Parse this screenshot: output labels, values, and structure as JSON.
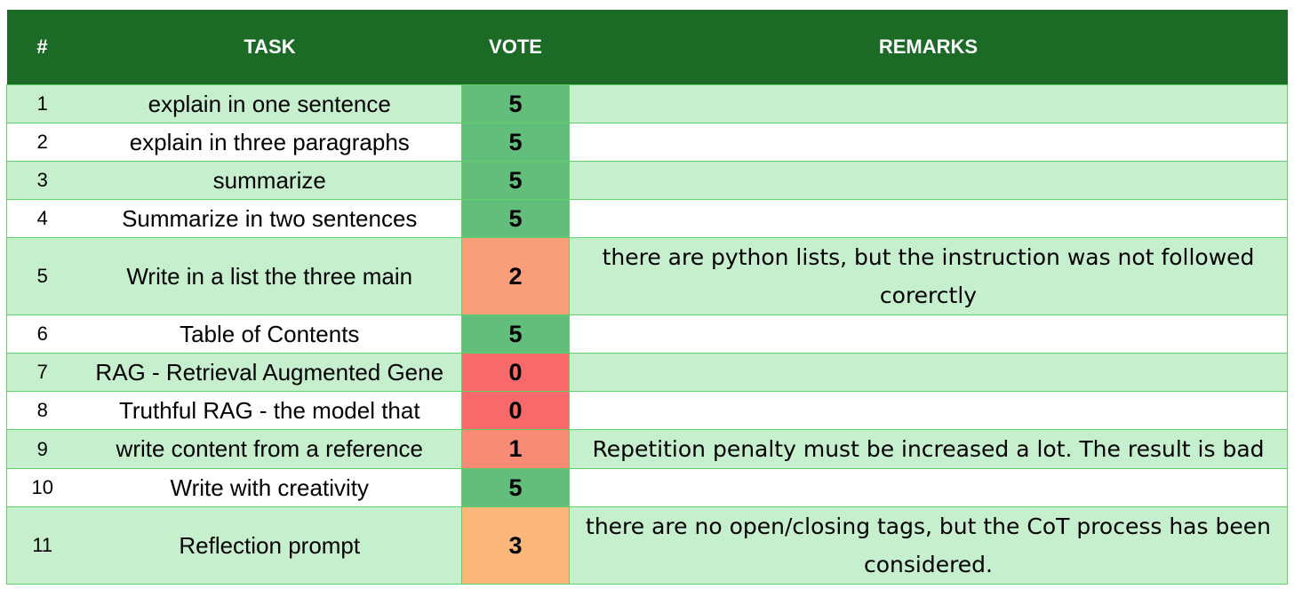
{
  "table": {
    "headers": {
      "num": "#",
      "task": "TASK",
      "vote": "VOTE",
      "remarks": "REMARKS"
    },
    "colors": {
      "header_bg": "#1b6b26",
      "band_green": "#c6efce",
      "band_white": "#ffffff",
      "grid": "#5fcf6a",
      "vote_5": "#63be7b",
      "vote_3": "#fbb77a",
      "vote_2": "#f89f79",
      "vote_1": "#f88b76",
      "vote_0": "#f8696b"
    },
    "rows": [
      {
        "num": "1",
        "task": "explain in one sentence",
        "vote": "5",
        "remarks": "",
        "vote_color": "#63be7b",
        "band": "#c6efce",
        "tall": false
      },
      {
        "num": "2",
        "task": "explain in three paragraphs",
        "vote": "5",
        "remarks": "",
        "vote_color": "#63be7b",
        "band": "#ffffff",
        "tall": false
      },
      {
        "num": "3",
        "task": "summarize",
        "vote": "5",
        "remarks": "",
        "vote_color": "#63be7b",
        "band": "#c6efce",
        "tall": false
      },
      {
        "num": "4",
        "task": "Summarize in two sentences",
        "vote": "5",
        "remarks": "",
        "vote_color": "#63be7b",
        "band": "#ffffff",
        "tall": false
      },
      {
        "num": "5",
        "task": "Write in a list the three main",
        "vote": "2",
        "remarks": "there are python lists, but the instruction was not followed corerctly",
        "vote_color": "#f89f79",
        "band": "#c6efce",
        "tall": true
      },
      {
        "num": "6",
        "task": "Table of Contents",
        "vote": "5",
        "remarks": "",
        "vote_color": "#63be7b",
        "band": "#ffffff",
        "tall": false
      },
      {
        "num": "7",
        "task": "RAG - Retrieval Augmented Gene",
        "vote": "0",
        "remarks": "",
        "vote_color": "#f8696b",
        "band": "#c6efce",
        "tall": false
      },
      {
        "num": "8",
        "task": "Truthful RAG - the model that",
        "vote": "0",
        "remarks": "",
        "vote_color": "#f8696b",
        "band": "#ffffff",
        "tall": false
      },
      {
        "num": "9",
        "task": "write content from a reference",
        "vote": "1",
        "remarks": "Repetition penalty must be increased a lot. The result is bad",
        "vote_color": "#f88b76",
        "band": "#c6efce",
        "tall": false
      },
      {
        "num": "10",
        "task": "Write with creativity",
        "vote": "5",
        "remarks": "",
        "vote_color": "#63be7b",
        "band": "#ffffff",
        "tall": false
      },
      {
        "num": "11",
        "task": "Reflection prompt",
        "vote": "3",
        "remarks": "there are no open/closing tags, but the CoT process has been considered.",
        "vote_color": "#fbb77a",
        "band": "#c6efce",
        "tall": true
      }
    ]
  }
}
